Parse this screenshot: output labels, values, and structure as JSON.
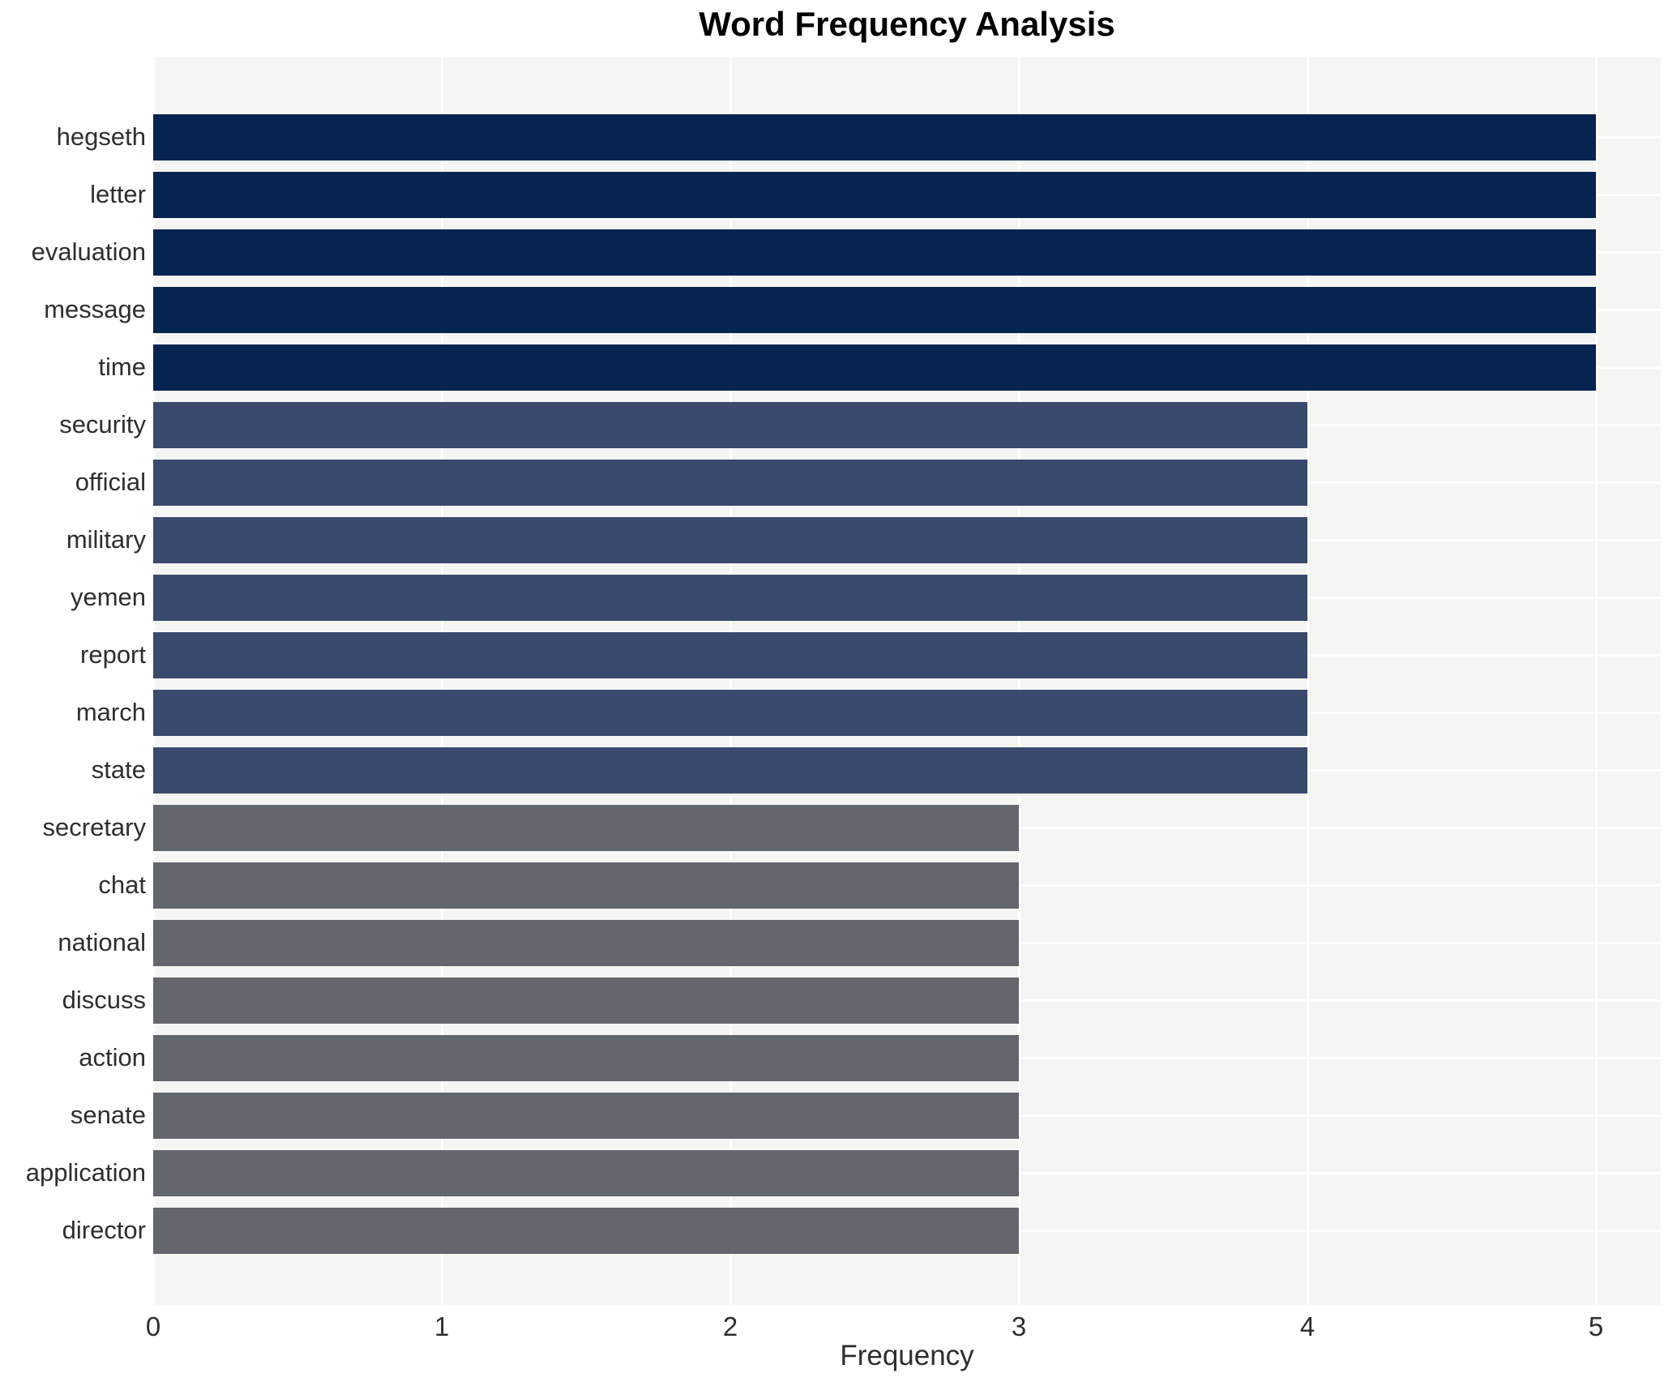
{
  "chart_data": {
    "type": "bar",
    "orientation": "horizontal",
    "title": "Word Frequency Analysis",
    "xlabel": "Frequency",
    "ylabel": "",
    "categories": [
      "hegseth",
      "letter",
      "evaluation",
      "message",
      "time",
      "security",
      "official",
      "military",
      "yemen",
      "report",
      "march",
      "state",
      "secretary",
      "chat",
      "national",
      "discuss",
      "action",
      "senate",
      "application",
      "director"
    ],
    "values": [
      5,
      5,
      5,
      5,
      5,
      4,
      4,
      4,
      4,
      4,
      4,
      4,
      3,
      3,
      3,
      3,
      3,
      3,
      3,
      3
    ],
    "xlim": [
      0,
      5
    ],
    "xticks": [
      0,
      1,
      2,
      3,
      4,
      5
    ],
    "grid": true,
    "legend": "none",
    "colors_by_value": {
      "5": "#072451",
      "4": "#3a4a6e",
      "3": "#64666e"
    },
    "plot_background": "#f5f5f4",
    "grid_color": "#ffffff",
    "title_color": "#000000",
    "tick_label_color": "#2e2e2e"
  }
}
